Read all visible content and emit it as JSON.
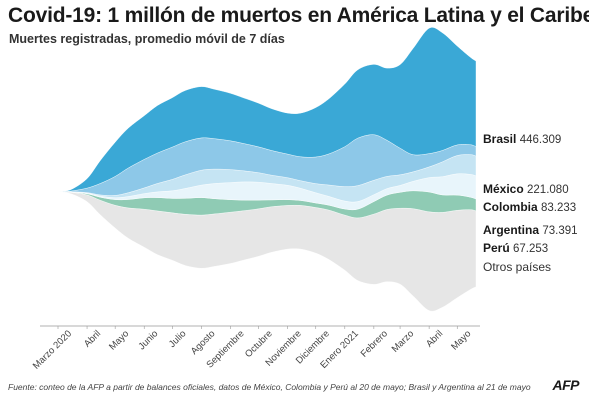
{
  "header": {
    "title": "Covid-19: 1 millón de muertos en América Latina y el Caribe",
    "subtitle": "Muertes registradas, promedio móvil de 7 días"
  },
  "footer": {
    "source": "Fuente: conteo de la AFP a partir de balances oficiales, datos de México, Colombia y Perú al 20 de mayo; Brasil y Argentina al 21 de mayo",
    "logo": "AFP"
  },
  "colors": {
    "Brasil": "#3aa8d6",
    "México": "#8dc8e8",
    "Colombia": "#c5e4f3",
    "Argentina": "#e8f5fb",
    "Perú": "#8fcbb4",
    "Otros países": "#e6e6e6"
  },
  "chart_data": {
    "type": "area",
    "subtype": "streamgraph",
    "title": "Covid-19: 1 millón de muertos en América Latina y el Caribe",
    "subtitle": "Muertes registradas, promedio móvil de 7 días",
    "x": [
      "2020-03-01",
      "2020-03-15",
      "2020-04-01",
      "2020-04-15",
      "2020-05-01",
      "2020-05-15",
      "2020-06-01",
      "2020-06-15",
      "2020-07-01",
      "2020-07-15",
      "2020-08-01",
      "2020-08-15",
      "2020-09-01",
      "2020-09-15",
      "2020-10-01",
      "2020-10-15",
      "2020-11-01",
      "2020-11-15",
      "2020-12-01",
      "2020-12-15",
      "2021-01-01",
      "2021-01-15",
      "2021-02-01",
      "2021-02-15",
      "2021-03-01",
      "2021-03-15",
      "2021-04-01",
      "2021-04-15",
      "2021-05-01",
      "2021-05-15",
      "2021-05-21"
    ],
    "x_tick_labels": [
      "Marzo 2020",
      "Abril",
      "Mayo",
      "Junio",
      "Julio",
      "Agosto",
      "Septiembre",
      "Octubre",
      "Noviembre",
      "Diciembre",
      "Enero 2021",
      "Febrero",
      "Marzo",
      "Abril",
      "Mayo"
    ],
    "series": [
      {
        "name": "Otros países",
        "total_label": "",
        "values": [
          0,
          40,
          180,
          380,
          600,
          800,
          1000,
          1150,
          1250,
          1350,
          1400,
          1380,
          1350,
          1300,
          1250,
          1200,
          1150,
          1150,
          1200,
          1300,
          1450,
          1650,
          1850,
          1900,
          2000,
          2300,
          2600,
          2500,
          2300,
          2100,
          2000
        ]
      },
      {
        "name": "Perú",
        "total_label": "67.253",
        "values": [
          0,
          5,
          30,
          80,
          150,
          220,
          300,
          350,
          380,
          420,
          460,
          400,
          330,
          280,
          230,
          180,
          150,
          130,
          120,
          130,
          160,
          230,
          330,
          380,
          420,
          470,
          520,
          460,
          400,
          330,
          310
        ]
      },
      {
        "name": "Argentina",
        "total_label": "73.391",
        "values": [
          0,
          5,
          15,
          30,
          50,
          80,
          110,
          150,
          200,
          260,
          330,
          400,
          450,
          480,
          470,
          430,
          380,
          320,
          270,
          230,
          210,
          200,
          180,
          170,
          180,
          250,
          380,
          480,
          560,
          600,
          610
        ]
      },
      {
        "name": "Colombia",
        "total_label": "83.233",
        "values": [
          0,
          5,
          15,
          30,
          60,
          100,
          150,
          220,
          300,
          360,
          390,
          380,
          340,
          290,
          250,
          220,
          200,
          200,
          240,
          300,
          380,
          420,
          380,
          320,
          280,
          250,
          280,
          390,
          480,
          520,
          520
        ]
      },
      {
        "name": "México",
        "total_label": "221.080",
        "values": [
          0,
          20,
          120,
          300,
          500,
          650,
          750,
          800,
          850,
          870,
          850,
          800,
          760,
          720,
          680,
          650,
          620,
          630,
          700,
          820,
          1050,
          1250,
          1200,
          950,
          700,
          450,
          350,
          300,
          280,
          260,
          250
        ]
      },
      {
        "name": "Brasil",
        "total_label": "446.309",
        "values": [
          0,
          40,
          250,
          600,
          900,
          1050,
          1150,
          1250,
          1300,
          1350,
          1350,
          1300,
          1250,
          1200,
          1150,
          1100,
          1080,
          1150,
          1300,
          1450,
          1650,
          1800,
          1850,
          1900,
          2200,
          2800,
          3300,
          3100,
          2600,
          2300,
          2250
        ]
      }
    ],
    "xlabel": "",
    "ylabel": "",
    "grid": false,
    "legend": "direct labels at right"
  }
}
